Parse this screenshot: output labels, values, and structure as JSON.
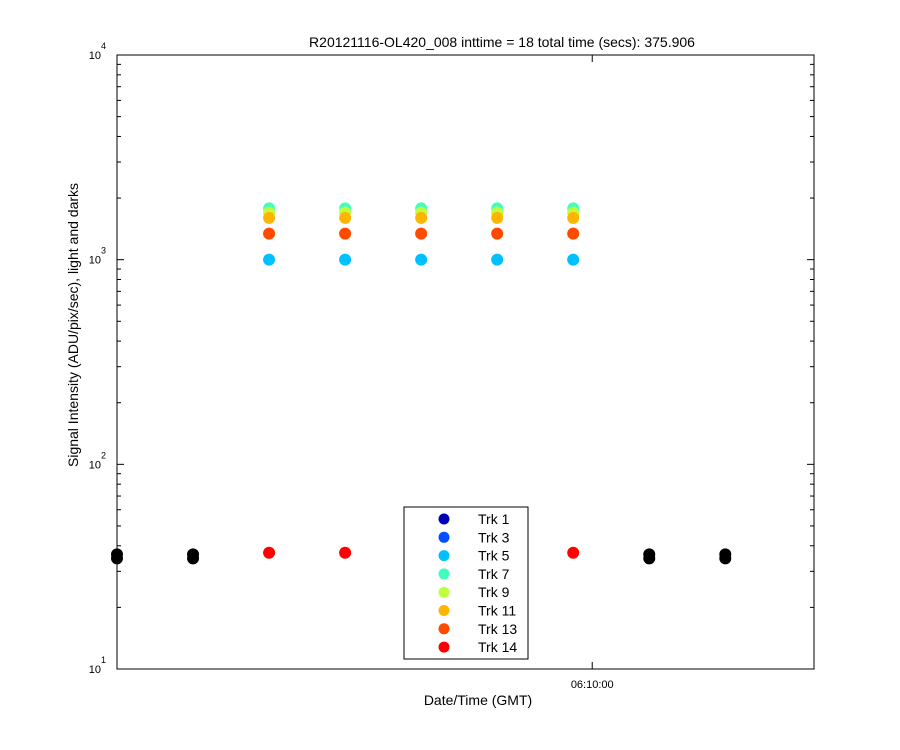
{
  "chart_data": {
    "type": "scatter",
    "title": "R20121116-OL420_008 inttime = 18 total time (secs): 375.906",
    "xlabel": "Date/Time (GMT)",
    "ylabel": "Signal Intensity (ADU/pix/sec), light and darks",
    "yscale": "log",
    "ylim": [
      10,
      10000
    ],
    "y_ticks": [
      {
        "base": "10",
        "exp": "1"
      },
      {
        "base": "10",
        "exp": "2"
      },
      {
        "base": "10",
        "exp": "3"
      },
      {
        "base": "10",
        "exp": "4"
      }
    ],
    "x_tick_label": "06:10:00",
    "x_tick_seconds": 600,
    "xlim_seconds": [
      300,
      740
    ],
    "grid": false,
    "legend_position": "bottom-center",
    "series": [
      {
        "name": "Trk 1",
        "color": "#0000b4",
        "x": [],
        "y": []
      },
      {
        "name": "Trk 3",
        "color": "#0050ff",
        "x": [],
        "y": []
      },
      {
        "name": "Trk 5",
        "color": "#00c0ff",
        "x": [
          396,
          444,
          492,
          540,
          588
        ],
        "y": [
          1000,
          1000,
          1000,
          1000,
          1000
        ]
      },
      {
        "name": "Trk 7",
        "color": "#40ffbe",
        "x": [
          396,
          444,
          492,
          540,
          588
        ],
        "y": [
          1780,
          1780,
          1780,
          1780,
          1780
        ]
      },
      {
        "name": "Trk 9",
        "color": "#c0ff40",
        "x": [
          396,
          444,
          492,
          540,
          588
        ],
        "y": [
          1700,
          1700,
          1700,
          1700,
          1700
        ]
      },
      {
        "name": "Trk 11",
        "color": "#ffb400",
        "x": [
          396,
          444,
          492,
          540,
          588
        ],
        "y": [
          1600,
          1600,
          1600,
          1600,
          1600
        ]
      },
      {
        "name": "Trk 13",
        "color": "#ff4a00",
        "x": [
          396,
          444,
          492,
          540,
          588
        ],
        "y": [
          1340,
          1340,
          1340,
          1340,
          1340
        ]
      },
      {
        "name": "Trk 14",
        "color": "#ff0000",
        "x": [
          396,
          444,
          588
        ],
        "y": [
          37,
          37,
          37
        ]
      }
    ],
    "dark_series": {
      "color": "#000000",
      "x": [
        300,
        348,
        636,
        684
      ],
      "y": [
        35.5,
        35.5,
        35.5,
        35.5
      ]
    }
  }
}
